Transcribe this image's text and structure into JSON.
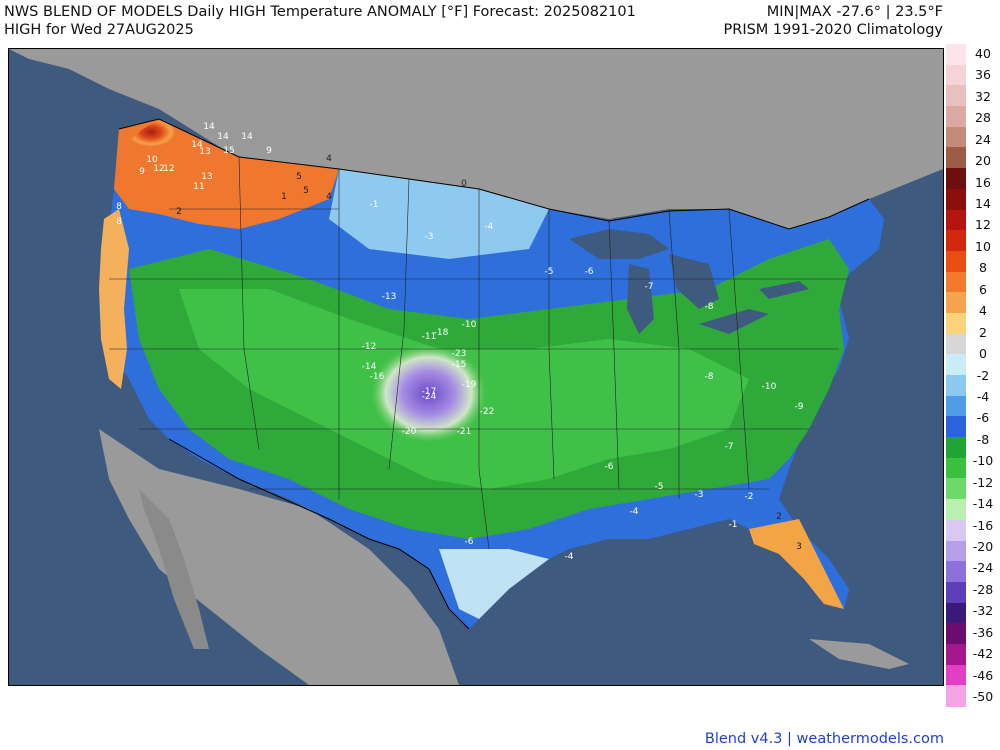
{
  "header": {
    "title_line1": "NWS BLEND OF MODELS Daily HIGH Temperature ANOMALY [°F] Forecast: 2025082101",
    "title_line2": "HIGH for Wed 27AUG2025",
    "minmax": "MIN|MAX -27.6° | 23.5°F",
    "climatology": "PRISM 1991-2020 Climatology"
  },
  "footer": {
    "credit": "Blend v4.3 | weathermodels.com"
  },
  "colors": {
    "ocean": "#3e5a7e",
    "land_outside": "#9a9a9a",
    "lakes": "#3e5a7e"
  },
  "colorbar": {
    "labels": [
      "40",
      "36",
      "32",
      "28",
      "24",
      "20",
      "16",
      "14",
      "12",
      "10",
      "8",
      "6",
      "4",
      "2",
      "0",
      "-2",
      "-4",
      "-6",
      "-8",
      "-10",
      "-12",
      "-14",
      "-16",
      "-20",
      "-24",
      "-28",
      "-32",
      "-36",
      "-42",
      "-46",
      "-50"
    ],
    "colors": [
      "#fbe5ea",
      "#f5d3d6",
      "#e9c0bf",
      "#d9a9a2",
      "#c48b7b",
      "#9e5b45",
      "#6d0f0f",
      "#8e0e0e",
      "#b41510",
      "#d4280e",
      "#ea4c12",
      "#f37a2a",
      "#f7a34c",
      "#fbd37b",
      "#d7d7d7",
      "#c9ecf7",
      "#8cc9f1",
      "#4f9de6",
      "#2b63de",
      "#1fa534",
      "#38c13e",
      "#6fd86a",
      "#b9f0b0",
      "#d9c9f2",
      "#b79eea",
      "#8d70dc",
      "#5d3fb9",
      "#391a7c",
      "#6a0d6e",
      "#a4178f",
      "#e23fc4",
      "#f6a3e6"
    ]
  },
  "map": {
    "anomaly_labels": [
      {
        "v": "14"
      },
      {
        "v": "14"
      },
      {
        "v": "14"
      },
      {
        "v": "13"
      },
      {
        "v": "15"
      },
      {
        "v": "14"
      },
      {
        "v": "12"
      },
      {
        "v": "13"
      },
      {
        "v": "11"
      },
      {
        "v": "12"
      },
      {
        "v": "10"
      },
      {
        "v": "9"
      },
      {
        "v": "9"
      },
      {
        "v": "8"
      },
      {
        "v": "8"
      },
      {
        "v": "5"
      },
      {
        "v": "4"
      },
      {
        "v": "5"
      },
      {
        "v": "4"
      },
      {
        "v": "2"
      },
      {
        "v": "1"
      },
      {
        "v": "0"
      },
      {
        "v": "-1"
      },
      {
        "v": "-3"
      },
      {
        "v": "-4"
      },
      {
        "v": "-5"
      },
      {
        "v": "-6"
      },
      {
        "v": "-7"
      },
      {
        "v": "-8"
      },
      {
        "v": "-10"
      },
      {
        "v": "-11"
      },
      {
        "v": "-12"
      },
      {
        "v": "-13"
      },
      {
        "v": "-14"
      },
      {
        "v": "-15"
      },
      {
        "v": "-16"
      },
      {
        "v": "-17"
      },
      {
        "v": "-18"
      },
      {
        "v": "-19"
      },
      {
        "v": "-20"
      },
      {
        "v": "-21"
      },
      {
        "v": "-22"
      },
      {
        "v": "-23"
      },
      {
        "v": "-24"
      },
      {
        "v": "-9"
      },
      {
        "v": "-10"
      },
      {
        "v": "-8"
      },
      {
        "v": "-7"
      },
      {
        "v": "-6"
      },
      {
        "v": "-5"
      },
      {
        "v": "-4"
      },
      {
        "v": "-3"
      },
      {
        "v": "-2"
      },
      {
        "v": "-1"
      },
      {
        "v": "3"
      },
      {
        "v": "2"
      },
      {
        "v": "-4"
      },
      {
        "v": "-6"
      }
    ]
  }
}
